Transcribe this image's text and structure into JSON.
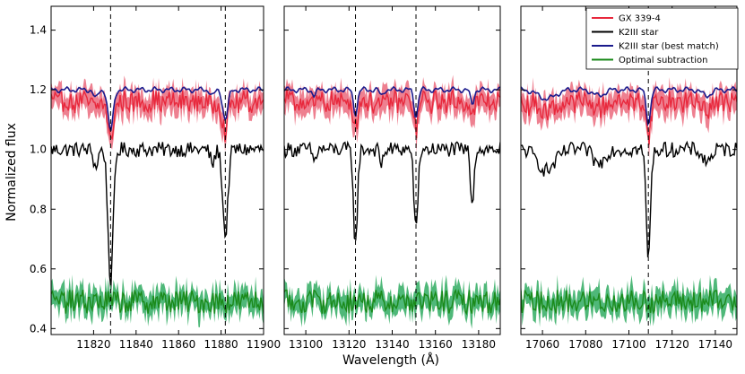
{
  "chart_data": {
    "type": "line",
    "ylabel": "Normalized flux",
    "xlabel": "Wavelength (Å)",
    "ylim": [
      0.38,
      1.48
    ],
    "yticks": [
      0.4,
      0.6,
      0.8,
      1.0,
      1.2,
      1.4
    ],
    "ytick_labels": [
      "0.4",
      "0.6",
      "0.8",
      "1.0",
      "1.2",
      "1.4"
    ],
    "legend": {
      "location": "top-right of right panel",
      "entries": [
        {
          "label": "GX 339-4",
          "color": "#e8283c"
        },
        {
          "label": "K2III star",
          "color": "#000000"
        },
        {
          "label": "K2III star (best match)",
          "color": "#1a1a8c"
        },
        {
          "label": "Optimal subtraction",
          "color": "#1a8a1a"
        }
      ]
    },
    "series_levels": {
      "gx339_4_median": 1.16,
      "gx339_4_band_halfwidth": 0.035,
      "k2iii_continuum": 1.0,
      "best_match_continuum": 1.2,
      "optimal_subtraction_median": 0.49,
      "optimal_subtraction_band_halfwidth": 0.035
    },
    "panels": [
      {
        "xlim": [
          11800,
          11900
        ],
        "xticks": [
          11820,
          11840,
          11860,
          11880,
          11900
        ],
        "xtick_labels": [
          "11820",
          "11840",
          "11860",
          "11880",
          "11900"
        ],
        "dashed_lines": [
          11828,
          11882
        ],
        "absorption": [
          {
            "center": 11828,
            "k2_depth": 0.45,
            "match_depth": 0.14,
            "width": 1.2
          },
          {
            "center": 11882,
            "k2_depth": 0.29,
            "match_depth": 0.1,
            "width": 1.2
          },
          {
            "center": 11821,
            "k2_depth": 0.06,
            "match_depth": 0.03,
            "width": 1.0
          },
          {
            "center": 11876,
            "k2_depth": 0.05,
            "match_depth": 0.02,
            "width": 1.0
          }
        ]
      },
      {
        "xlim": [
          13090,
          13190
        ],
        "xticks": [
          13100,
          13120,
          13140,
          13160,
          13180
        ],
        "xtick_labels": [
          "13100",
          "13120",
          "13140",
          "13160",
          "13180"
        ],
        "dashed_lines": [
          13123,
          13151
        ],
        "absorption": [
          {
            "center": 13123,
            "k2_depth": 0.32,
            "match_depth": 0.08,
            "width": 0.9
          },
          {
            "center": 13151,
            "k2_depth": 0.28,
            "match_depth": 0.09,
            "width": 0.9
          },
          {
            "center": 13177,
            "k2_depth": 0.18,
            "match_depth": 0.05,
            "width": 0.8
          },
          {
            "center": 13135,
            "k2_depth": 0.05,
            "match_depth": 0.02,
            "width": 0.8
          },
          {
            "center": 13104,
            "k2_depth": 0.04,
            "match_depth": 0.02,
            "width": 0.8
          }
        ]
      },
      {
        "xlim": [
          17050,
          17150
        ],
        "xticks": [
          17060,
          17080,
          17100,
          17120,
          17140
        ],
        "xtick_labels": [
          "17060",
          "17080",
          "17100",
          "17120",
          "17140"
        ],
        "dashed_lines": [
          17109
        ],
        "absorption": [
          {
            "center": 17109,
            "k2_depth": 0.36,
            "match_depth": 0.11,
            "width": 1.0
          },
          {
            "center": 17062,
            "k2_depth": 0.07,
            "match_depth": 0.03,
            "width": 4.0
          },
          {
            "center": 17086,
            "k2_depth": 0.05,
            "match_depth": 0.02,
            "width": 2.5
          },
          {
            "center": 17136,
            "k2_depth": 0.04,
            "match_depth": 0.02,
            "width": 2.0
          }
        ]
      }
    ]
  }
}
